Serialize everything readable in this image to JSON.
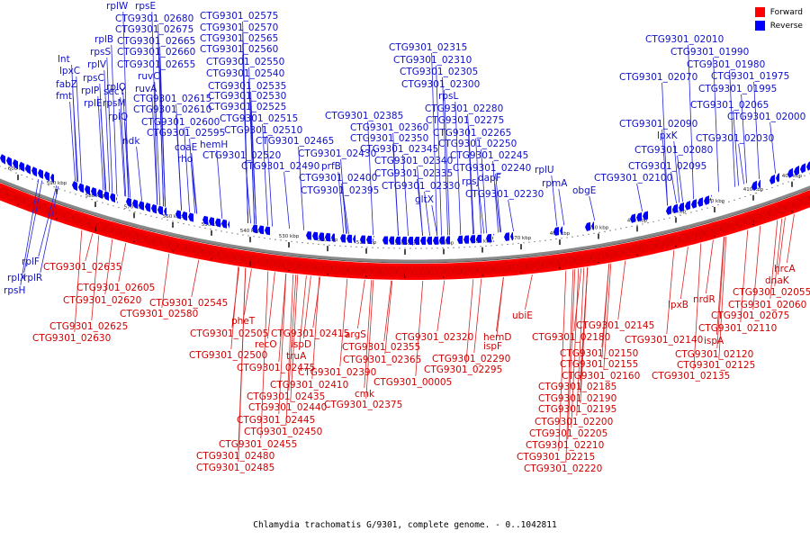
{
  "legend": [
    {
      "label": "Forward",
      "color": "#ff0000"
    },
    {
      "label": "Reverse",
      "color": "#0000ff"
    }
  ],
  "caption": "Chlamydia trachomatis G/9301, complete genome. - 0..1042811",
  "colors": {
    "forward": "#ff0000",
    "reverse": "#0000ff",
    "backbone": "#888888"
  },
  "ticks": [
    "400 kbp",
    "410 kbp",
    "420 kbp",
    "430 kbp",
    "440 kbp",
    "450 kbp",
    "460 kbp",
    "470 kbp",
    "480 kbp",
    "490 kbp",
    "500 kbp",
    "510 kbp",
    "520 kbp",
    "530 kbp",
    "540 kbp",
    "550 kbp",
    "560 kbp",
    "570 kbp",
    "580 kbp",
    "590 kbp",
    "600 kbp"
  ],
  "reverse_labels": [
    "rplW",
    "rpsE",
    "CTG9301_02680",
    "CTG9301_02675",
    "rplB",
    "CTG9301_02665",
    "rpsS",
    "CTG9301_02660",
    "rplV",
    "CTG9301_02655",
    "lnt",
    "lpxC",
    "rpsC",
    "ruvC",
    "fabZ",
    "rplO",
    "ruvA",
    "fmt",
    "rplP",
    "secY",
    "rplE",
    "rpsM",
    "CTG9301_02615",
    "CTG9301_02610",
    "rplQ",
    "CTG9301_02600",
    "ndk",
    "CTG9301_02595",
    "coaE",
    "rho",
    "hemH",
    "CTG9301_02575",
    "CTG9301_02570",
    "CTG9301_02565",
    "CTG9301_02560",
    "CTG9301_02550",
    "CTG9301_02540",
    "CTG9301_02535",
    "CTG9301_02530",
    "CTG9301_02525",
    "CTG9301_02515",
    "CTG9301_02510",
    "CTG9301_02520",
    "CTG9301_02465",
    "CTG9301_02430",
    "CTG9301_02490",
    "prfB",
    "CTG9301_02400",
    "CTG9301_02395",
    "CTG9301_02385",
    "CTG9301_02360",
    "CTG9301_02350",
    "CTG9301_02345",
    "CTG9301_02340",
    "CTG9301_02335",
    "CTG9301_02330",
    "gltX",
    "CTG9301_02315",
    "CTG9301_02310",
    "CTG9301_02305",
    "CTG9301_02300",
    "rpsL",
    "CTG9301_02280",
    "CTG9301_02275",
    "CTG9301_02265",
    "CTG9301_02250",
    "CTG9301_02245",
    "CTG9301_02240",
    "rpsJ",
    "dapF",
    "CTG9301_02230",
    "rplU",
    "rpmA",
    "obgE",
    "CTG9301_02100",
    "CTG9301_02095",
    "CTG9301_02080",
    "lpxK",
    "CTG9301_02090",
    "CTG9301_02065",
    "CTG9301_02070",
    "CTG9301_02030",
    "CTG9301_02000",
    "CTG9301_01995",
    "CTG9301_01975",
    "CTG9301_01980",
    "CTG9301_01990",
    "CTG9301_02010",
    "rplF",
    "rplX",
    "rplR",
    "rpsH"
  ],
  "forward_labels": [
    "CTG9301_02635",
    "CTG9301_02605",
    "CTG9301_02620",
    "CTG9301_02625",
    "CTG9301_02580",
    "CTG9301_02630",
    "CTG9301_02545",
    "pheT",
    "CTG9301_02505",
    "recO",
    "CTG9301_02500",
    "truA",
    "CTG9301_02475",
    "CTG9301_02415",
    "ispD",
    "CTG9301_02410",
    "CTG9301_02435",
    "CTG9301_02440",
    "CTG9301_02445",
    "CTG9301_02450",
    "CTG9301_02455",
    "CTG9301_02480",
    "CTG9301_02485",
    "CTG9301_02390",
    "argS",
    "CTG9301_02355",
    "CTG9301_02365",
    "cmk",
    "CTG9301_02375",
    "CTG9301_00005",
    "CTG9301_02320",
    "CTG9301_02295",
    "hemD",
    "ispF",
    "CTG9301_02290",
    "ubiE",
    "CTG9301_02180",
    "CTG9301_02150",
    "CTG9301_02155",
    "CTG9301_02160",
    "CTG9301_02185",
    "CTG9301_02190",
    "CTG9301_02195",
    "CTG9301_02200",
    "CTG9301_02205",
    "CTG9301_02210",
    "CTG9301_02215",
    "CTG9301_02220",
    "CTG9301_02145",
    "CTG9301_02140",
    "lpxB",
    "nrdR",
    "ispA",
    "CTG9301_02120",
    "CTG9301_02125",
    "CTG9301_02135",
    "CTG9301_02110",
    "CTG9301_02075",
    "CTG9301_02060",
    "CTG9301_02055",
    "dnaK",
    "hrcA"
  ]
}
